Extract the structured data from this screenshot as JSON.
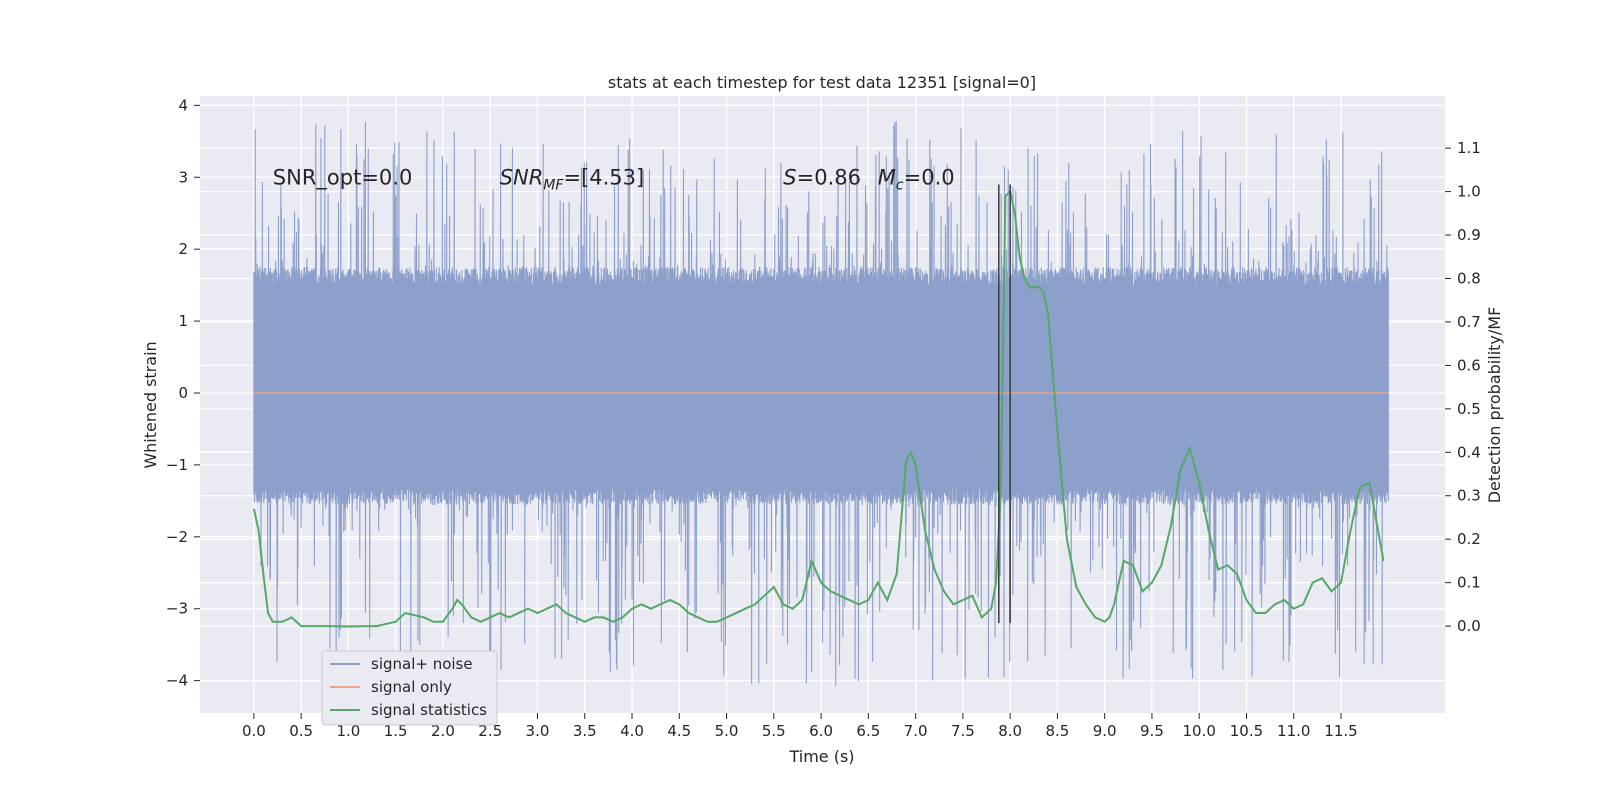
{
  "chart_data": {
    "type": "line",
    "title": "stats at each timestep for test data 12351 [signal=0]",
    "xlabel": "Time (s)",
    "ylabel": "Whitened strain",
    "ylabel_right": "Detection probability/MF",
    "xlim": [
      -0.57,
      12.6
    ],
    "ylim": [
      -4.45,
      4.13
    ],
    "ylim_right": [
      -0.2,
      1.22
    ],
    "x_ticks": [
      0.0,
      0.5,
      1.0,
      1.5,
      2.0,
      2.5,
      3.0,
      3.5,
      4.0,
      4.5,
      5.0,
      5.5,
      6.0,
      6.5,
      7.0,
      7.5,
      8.0,
      8.5,
      9.0,
      9.5,
      10.0,
      10.5,
      11.0,
      11.5
    ],
    "x_tick_labels": [
      "0.0",
      "0.5",
      "1.0",
      "1.5",
      "2.0",
      "2.5",
      "3.0",
      "3.5",
      "4.0",
      "4.5",
      "5.0",
      "5.5",
      "6.0",
      "6.5",
      "7.0",
      "7.5",
      "8.0",
      "8.5",
      "9.0",
      "9.5",
      "10.0",
      "10.5",
      "11.0",
      "11.5"
    ],
    "y_ticks": [
      -4,
      -3,
      -2,
      -1,
      0,
      1,
      2,
      3,
      4
    ],
    "y_tick_labels": [
      "−4",
      "−3",
      "−2",
      "−1",
      "0",
      "1",
      "2",
      "3",
      "4"
    ],
    "y_ticks_right": [
      0.0,
      0.1,
      0.2,
      0.3,
      0.4,
      0.5,
      0.6,
      0.7,
      0.8,
      0.9,
      1.0,
      1.1
    ],
    "y_tick_labels_right": [
      "0.0",
      "0.1",
      "0.2",
      "0.3",
      "0.4",
      "0.5",
      "0.6",
      "0.7",
      "0.8",
      "0.9",
      "1.0",
      "1.1"
    ],
    "grid": true,
    "legend_position": "lower-left",
    "annotations": [
      {
        "text": "SNR_opt=0.0",
        "x": 0.2,
        "y": 3.0
      },
      {
        "text": "SNR_MF=[4.53]",
        "x": 2.6,
        "y": 3.0
      },
      {
        "text": "S=0.86",
        "x": 5.6,
        "y": 3.0
      },
      {
        "text": "M_c=0.0",
        "x": 6.6,
        "y": 3.0
      }
    ],
    "vlines": [
      7.88,
      8.0
    ],
    "vlines_yrange": [
      -3.2,
      2.9
    ],
    "series": [
      {
        "name": "signal+ noise",
        "color": "#8da0cb",
        "axis": "left",
        "x_range": [
          0.0,
          12.0
        ],
        "amplitude_band": [
          -1.55,
          1.75
        ],
        "peak_range": [
          -4.1,
          3.78
        ]
      },
      {
        "name": "signal only",
        "color": "#e8a58a",
        "axis": "left",
        "x": [
          0.0,
          12.0
        ],
        "y": [
          0.0,
          0.0
        ]
      },
      {
        "name": "signal statistics",
        "color": "#55a868",
        "axis": "right",
        "x": [
          0.0,
          0.05,
          0.1,
          0.15,
          0.2,
          0.3,
          0.4,
          0.5,
          0.6,
          0.8,
          1.0,
          1.2,
          1.3,
          1.5,
          1.6,
          1.8,
          1.9,
          2.0,
          2.1,
          2.15,
          2.2,
          2.3,
          2.4,
          2.5,
          2.6,
          2.7,
          2.8,
          2.9,
          3.0,
          3.1,
          3.2,
          3.3,
          3.4,
          3.5,
          3.6,
          3.7,
          3.8,
          3.9,
          4.0,
          4.1,
          4.2,
          4.3,
          4.4,
          4.5,
          4.6,
          4.7,
          4.8,
          4.9,
          5.0,
          5.1,
          5.2,
          5.3,
          5.4,
          5.5,
          5.6,
          5.7,
          5.8,
          5.9,
          6.0,
          6.1,
          6.2,
          6.3,
          6.4,
          6.5,
          6.6,
          6.7,
          6.8,
          6.9,
          6.95,
          7.0,
          7.1,
          7.2,
          7.3,
          7.4,
          7.5,
          7.6,
          7.7,
          7.8,
          7.85,
          7.9,
          7.95,
          8.0,
          8.05,
          8.1,
          8.15,
          8.2,
          8.25,
          8.3,
          8.35,
          8.4,
          8.5,
          8.6,
          8.7,
          8.8,
          8.9,
          9.0,
          9.05,
          9.1,
          9.2,
          9.3,
          9.4,
          9.5,
          9.6,
          9.7,
          9.8,
          9.9,
          10.0,
          10.1,
          10.2,
          10.3,
          10.4,
          10.5,
          10.6,
          10.7,
          10.8,
          10.9,
          11.0,
          11.1,
          11.2,
          11.3,
          11.4,
          11.5,
          11.6,
          11.7,
          11.8,
          11.95
        ],
        "y": [
          0.27,
          0.22,
          0.12,
          0.03,
          0.01,
          0.01,
          0.02,
          0.0,
          0.0,
          0.0,
          -0.001,
          0.0,
          0.0,
          0.01,
          0.03,
          0.02,
          0.01,
          0.01,
          0.04,
          0.06,
          0.05,
          0.02,
          0.01,
          0.02,
          0.03,
          0.02,
          0.03,
          0.04,
          0.03,
          0.04,
          0.05,
          0.03,
          0.02,
          0.01,
          0.02,
          0.02,
          0.01,
          0.02,
          0.04,
          0.05,
          0.04,
          0.05,
          0.06,
          0.05,
          0.03,
          0.02,
          0.01,
          0.01,
          0.02,
          0.03,
          0.04,
          0.05,
          0.07,
          0.09,
          0.05,
          0.04,
          0.06,
          0.15,
          0.1,
          0.08,
          0.07,
          0.06,
          0.05,
          0.06,
          0.1,
          0.06,
          0.12,
          0.38,
          0.4,
          0.37,
          0.22,
          0.13,
          0.08,
          0.05,
          0.06,
          0.07,
          0.02,
          0.04,
          0.1,
          0.3,
          0.99,
          1.0,
          0.95,
          0.85,
          0.8,
          0.78,
          0.78,
          0.78,
          0.77,
          0.72,
          0.45,
          0.2,
          0.09,
          0.05,
          0.02,
          0.01,
          0.02,
          0.05,
          0.15,
          0.14,
          0.08,
          0.1,
          0.14,
          0.23,
          0.36,
          0.41,
          0.33,
          0.22,
          0.13,
          0.14,
          0.12,
          0.06,
          0.03,
          0.03,
          0.05,
          0.06,
          0.04,
          0.05,
          0.1,
          0.11,
          0.08,
          0.1,
          0.22,
          0.32,
          0.33,
          0.15
        ]
      }
    ]
  }
}
